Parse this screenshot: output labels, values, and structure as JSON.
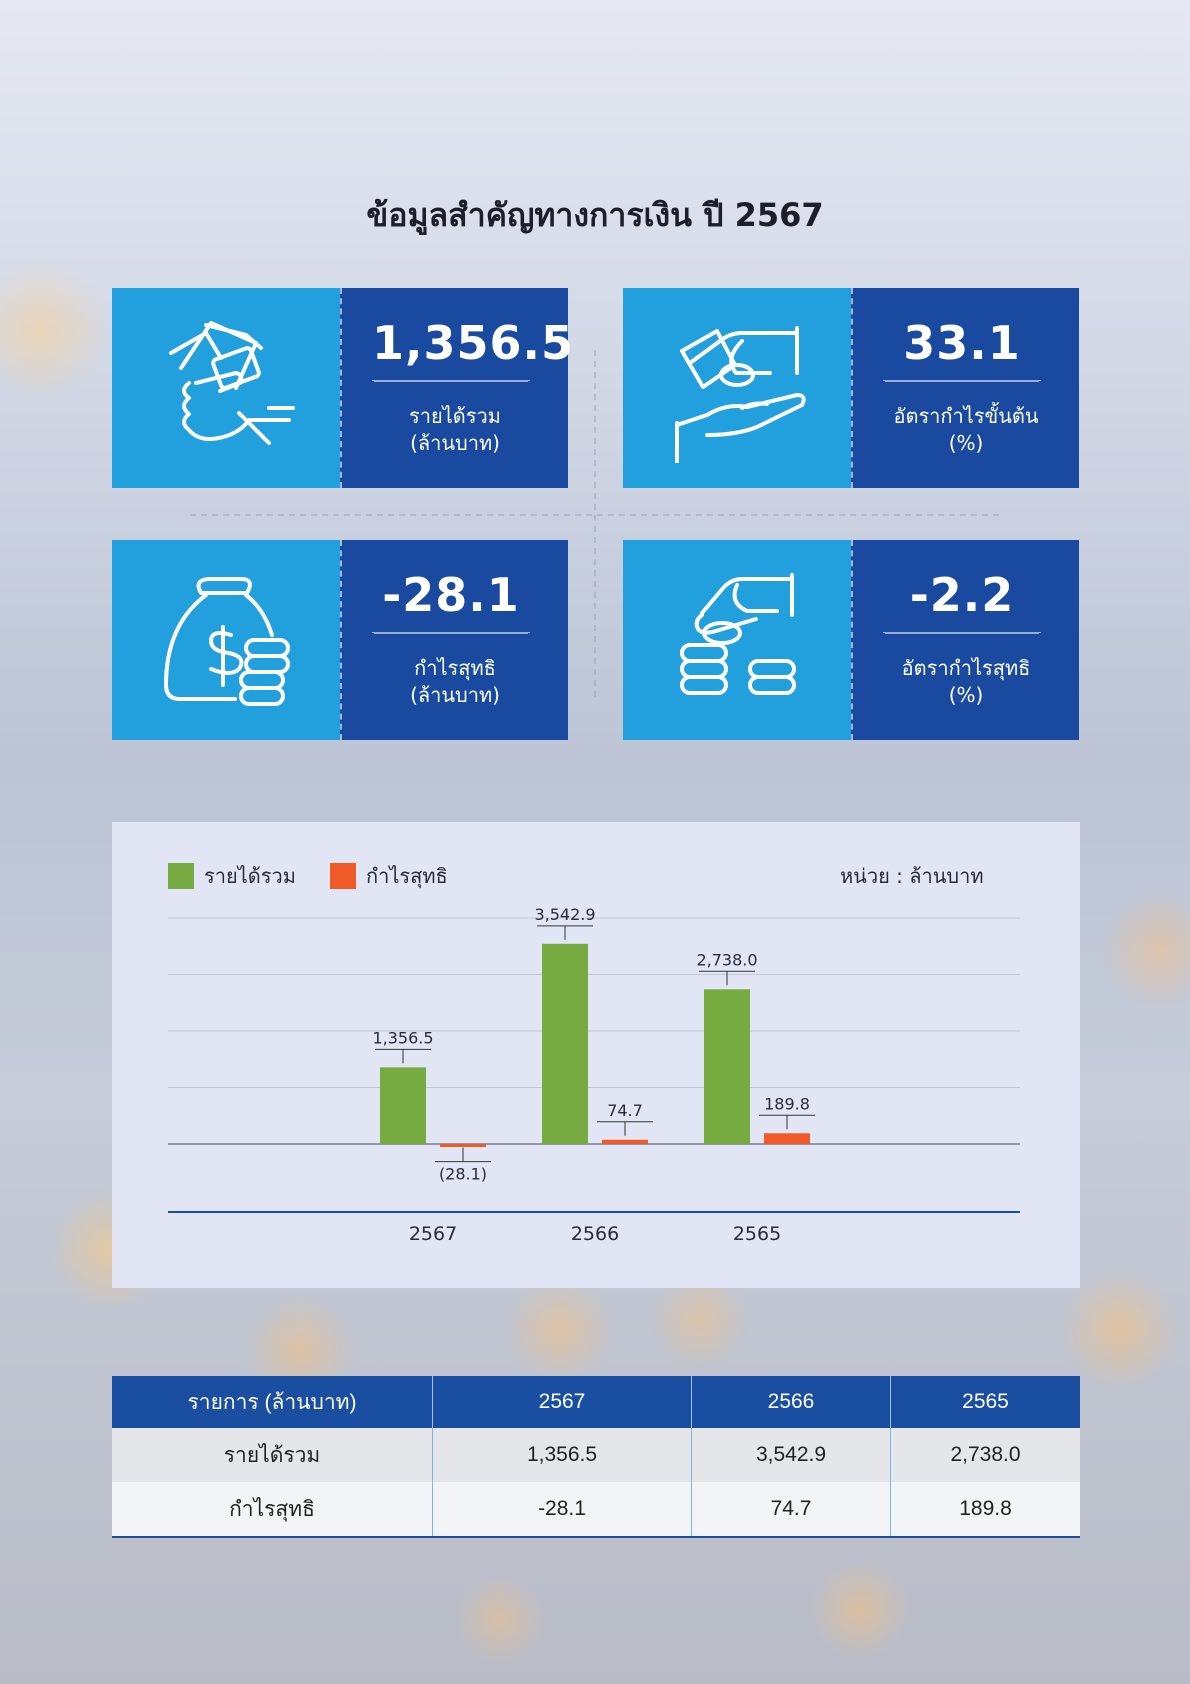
{
  "title": "ข้อมูลสำคัญทางการเงิน ปี 2567",
  "cards": [
    {
      "value": "1,356.5",
      "label1": "รายได้รวม",
      "label2": "(ล้านบาท)",
      "icon": "money-in-hand-icon"
    },
    {
      "value": "33.1",
      "label1": "อัตรากำไรขั้นต้น",
      "label2": "(%)",
      "icon": "hands-exchange-coin-icon"
    },
    {
      "value": "-28.1",
      "label1": "กำไรสุทธิ",
      "label2": "(ล้านบาท)",
      "icon": "money-bag-coins-icon"
    },
    {
      "value": "-2.2",
      "label1": "อัตรากำไรสุทธิ",
      "label2": "(%)",
      "icon": "hand-dropping-coin-icon"
    }
  ],
  "colors": {
    "revenue": "#76ab42",
    "profit": "#f05a28",
    "card_icon_bg": "#22a0dd",
    "card_value_bg": "#1a4aa0",
    "table_header": "#1a4ea0"
  },
  "chart_data": {
    "type": "bar",
    "categories": [
      "2567",
      "2566",
      "2565"
    ],
    "series": [
      {
        "name": "รายได้รวม",
        "values": [
          1356.5,
          3542.9,
          2738.0
        ],
        "labels": [
          "1,356.5",
          "3,542.9",
          "2,738.0"
        ]
      },
      {
        "name": "กำไรสุทธิ",
        "values": [
          -28.1,
          74.7,
          189.8
        ],
        "labels": [
          "(28.1)",
          "74.7",
          "189.8"
        ]
      }
    ],
    "unit": "หน่วย : ล้านบาท",
    "ylim": [
      -1200,
      4000
    ],
    "grid": true,
    "legend": "top-left"
  },
  "table": {
    "headers": [
      "รายการ (ล้านบาท)",
      "2567",
      "2566",
      "2565"
    ],
    "rows": [
      [
        "รายได้รวม",
        "1,356.5",
        "3,542.9",
        "2,738.0"
      ],
      [
        "กำไรสุทธิ",
        "-28.1",
        "74.7",
        "189.8"
      ]
    ]
  }
}
